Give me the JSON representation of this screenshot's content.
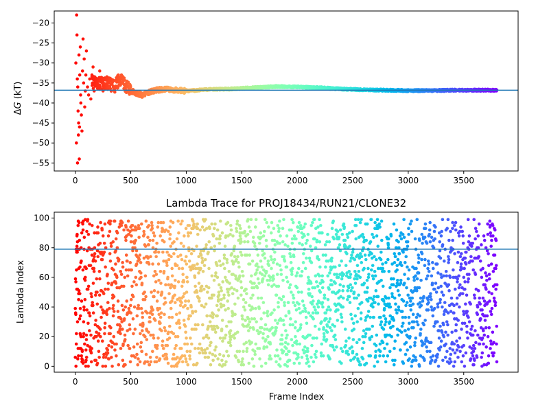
{
  "chart_data": [
    {
      "type": "scatter",
      "title": "",
      "xlabel": "",
      "ylabel": "ΔG (kT)",
      "ylabel_parts": {
        "prefix": "Δ",
        "var": "G",
        "suffix": " (kT)"
      },
      "xlim": [
        -190,
        3990
      ],
      "ylim": [
        -57,
        -17
      ],
      "xticks": [
        0,
        500,
        1000,
        1500,
        2000,
        2500,
        3000,
        3500
      ],
      "xtick_labels": [
        "0",
        "500",
        "1000",
        "1500",
        "2000",
        "2500",
        "3000",
        "3500"
      ],
      "yticks": [
        -55,
        -50,
        -45,
        -40,
        -35,
        -30,
        -25,
        -20
      ],
      "ytick_labels": [
        "−55",
        "−50",
        "−45",
        "−40",
        "−35",
        "−30",
        "−25",
        "−20"
      ],
      "hline": -36.8,
      "hline_color": "#1f77b4",
      "colormap": "rainbow_reversed_by_frame",
      "grid": false,
      "n_frames": 3800,
      "series": [
        {
          "values": [
            [
              5,
              -30
            ],
            [
              10,
              -50
            ],
            [
              12,
              -18
            ],
            [
              15,
              -23
            ],
            [
              18,
              -34
            ],
            [
              20,
              -55
            ],
            [
              22,
              -36
            ],
            [
              25,
              -42
            ],
            [
              28,
              -48
            ],
            [
              30,
              -45
            ],
            [
              33,
              -28
            ],
            [
              36,
              -54
            ],
            [
              38,
              -46
            ],
            [
              40,
              -33
            ],
            [
              45,
              -26
            ],
            [
              48,
              -38
            ],
            [
              50,
              -40
            ],
            [
              55,
              -43
            ],
            [
              60,
              -47
            ],
            [
              65,
              -32
            ],
            [
              70,
              -24
            ],
            [
              75,
              -35
            ],
            [
              80,
              -29
            ],
            [
              85,
              -41
            ],
            [
              90,
              -37
            ],
            [
              95,
              -33
            ],
            [
              100,
              -27
            ],
            [
              110,
              -36
            ],
            [
              120,
              -38
            ],
            [
              130,
              -34
            ],
            [
              140,
              -39
            ],
            [
              150,
              -33
            ],
            [
              160,
              -31
            ],
            [
              170,
              -37
            ],
            [
              180,
              -35
            ],
            [
              200,
              -34
            ],
            [
              220,
              -32
            ],
            [
              250,
              -37
            ],
            [
              300,
              -35
            ],
            [
              350,
              -36
            ],
            [
              400,
              -34
            ],
            [
              500,
              -37
            ],
            [
              600,
              -38
            ],
            [
              700,
              -37
            ],
            [
              800,
              -36.5
            ],
            [
              900,
              -36.8
            ],
            [
              1000,
              -37
            ],
            [
              1200,
              -36.6
            ],
            [
              1400,
              -36.5
            ],
            [
              1600,
              -36.2
            ],
            [
              1800,
              -35.9
            ],
            [
              2000,
              -36.0
            ],
            [
              2200,
              -36.2
            ],
            [
              2400,
              -36.5
            ],
            [
              2600,
              -36.7
            ],
            [
              2800,
              -36.8
            ],
            [
              3000,
              -36.9
            ],
            [
              3200,
              -36.9
            ],
            [
              3400,
              -36.8
            ],
            [
              3600,
              -36.8
            ],
            [
              3790,
              -36.8
            ]
          ]
        }
      ]
    },
    {
      "type": "scatter",
      "title": "Lambda Trace for PROJ18434/RUN21/CLONE32",
      "xlabel": "Frame Index",
      "ylabel": "Lambda Index",
      "xlim": [
        -190,
        3990
      ],
      "ylim": [
        -4,
        104
      ],
      "xticks": [
        0,
        500,
        1000,
        1500,
        2000,
        2500,
        3000,
        3500
      ],
      "xtick_labels": [
        "0",
        "500",
        "1000",
        "1500",
        "2000",
        "2500",
        "3000",
        "3500"
      ],
      "yticks": [
        0,
        20,
        40,
        60,
        80,
        100
      ],
      "ytick_labels": [
        "0",
        "20",
        "40",
        "60",
        "80",
        "100"
      ],
      "hline": 79,
      "hline_color": "#1f77b4",
      "colormap": "rainbow_reversed_by_frame",
      "grid": false,
      "n_frames": 3800,
      "series": [
        {
          "values": [
            [
              0,
              6
            ],
            [
              5,
              57
            ],
            [
              10,
              22
            ],
            [
              15,
              88
            ],
            [
              20,
              30
            ],
            [
              25,
              95
            ],
            [
              30,
              45
            ],
            [
              40,
              12
            ],
            [
              50,
              70
            ],
            [
              60,
              5
            ],
            [
              70,
              92
            ],
            [
              80,
              38
            ],
            [
              90,
              60
            ],
            [
              100,
              18
            ],
            [
              150,
              75
            ],
            [
              200,
              2
            ],
            [
              250,
              50
            ],
            [
              300,
              97
            ],
            [
              400,
              33
            ],
            [
              500,
              65
            ],
            [
              600,
              10
            ],
            [
              700,
              85
            ],
            [
              800,
              42
            ],
            [
              900,
              58
            ],
            [
              1000,
              3
            ],
            [
              1100,
              96
            ],
            [
              1200,
              27
            ],
            [
              1300,
              71
            ],
            [
              1400,
              14
            ],
            [
              1500,
              90
            ],
            [
              1600,
              48
            ],
            [
              1700,
              36
            ],
            [
              1800,
              82
            ],
            [
              1900,
              8
            ],
            [
              2000,
              63
            ],
            [
              2100,
              21
            ],
            [
              2200,
              99
            ],
            [
              2300,
              55
            ],
            [
              2400,
              40
            ],
            [
              2500,
              77
            ],
            [
              2600,
              16
            ],
            [
              2700,
              93
            ],
            [
              2800,
              30
            ],
            [
              2900,
              68
            ],
            [
              3000,
              4
            ],
            [
              3100,
              86
            ],
            [
              3200,
              47
            ],
            [
              3300,
              24
            ],
            [
              3400,
              97
            ],
            [
              3500,
              60
            ],
            [
              3600,
              12
            ],
            [
              3700,
              80
            ],
            [
              3750,
              35
            ],
            [
              3790,
              52
            ]
          ]
        }
      ]
    }
  ]
}
